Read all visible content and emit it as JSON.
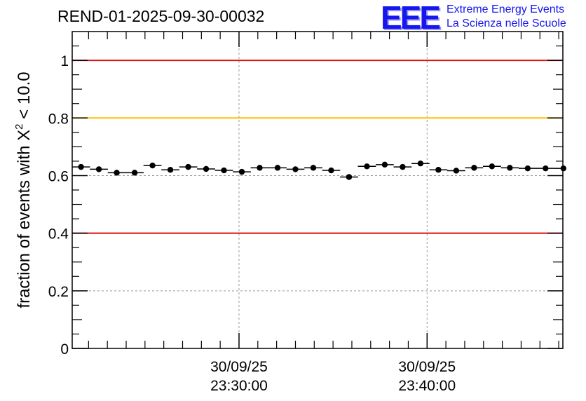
{
  "chart_data": {
    "type": "scatter",
    "title": "REND-01-2025-09-30-00032",
    "ylabel_prefix": "fraction of events with ",
    "ylabel_symbol": "X",
    "ylabel_sup": "2",
    "ylabel_suffix": " < 10.0",
    "xlabel": "",
    "ylim": [
      0,
      1.1
    ],
    "xlim_minutes": [
      21.13,
      47.22
    ],
    "yticks": [
      {
        "value": 0,
        "label": "0"
      },
      {
        "value": 0.2,
        "label": "0.2"
      },
      {
        "value": 0.4,
        "label": "0.4"
      },
      {
        "value": 0.6,
        "label": "0.6"
      },
      {
        "value": 0.8,
        "label": "0.8"
      },
      {
        "value": 1,
        "label": "1"
      }
    ],
    "xticks": [
      {
        "minute": 30,
        "date": "30/09/25",
        "time": "23:30:00"
      },
      {
        "minute": 40,
        "date": "30/09/25",
        "time": "23:40:00"
      }
    ],
    "reference_lines": [
      {
        "value": 1.0,
        "color": "#dd1111",
        "name": "upper-limit"
      },
      {
        "value": 0.8,
        "color": "#ffc000",
        "name": "warning-level"
      },
      {
        "value": 0.4,
        "color": "#dd1111",
        "name": "lower-limit"
      }
    ],
    "bin_width_minutes": 0.96,
    "x_minutes": [
      21.6,
      22.55,
      23.5,
      24.45,
      25.4,
      26.35,
      27.3,
      28.25,
      29.2,
      30.15,
      31.1,
      32.05,
      33.0,
      33.95,
      34.9,
      35.85,
      36.8,
      37.75,
      38.7,
      39.65,
      40.6,
      41.55,
      42.5,
      43.45,
      44.4,
      45.35,
      46.3,
      47.25
    ],
    "values": [
      0.63,
      0.622,
      0.61,
      0.61,
      0.635,
      0.62,
      0.63,
      0.623,
      0.618,
      0.613,
      0.627,
      0.627,
      0.622,
      0.627,
      0.618,
      0.595,
      0.632,
      0.638,
      0.63,
      0.642,
      0.62,
      0.617,
      0.627,
      0.632,
      0.627,
      0.625,
      0.625,
      0.625
    ],
    "errors": [
      0.008,
      0.008,
      0.008,
      0.008,
      0.008,
      0.008,
      0.008,
      0.008,
      0.008,
      0.008,
      0.008,
      0.008,
      0.008,
      0.008,
      0.008,
      0.008,
      0.008,
      0.008,
      0.008,
      0.008,
      0.008,
      0.008,
      0.008,
      0.008,
      0.008,
      0.008,
      0.008,
      0.008
    ]
  },
  "logo": {
    "mark": "EEE",
    "line1": "Extreme Energy Events",
    "line2": "La Scienza nelle Scuole"
  },
  "colors": {
    "marker": "#000000",
    "grid": "#999999",
    "logo": "#1616ee"
  }
}
